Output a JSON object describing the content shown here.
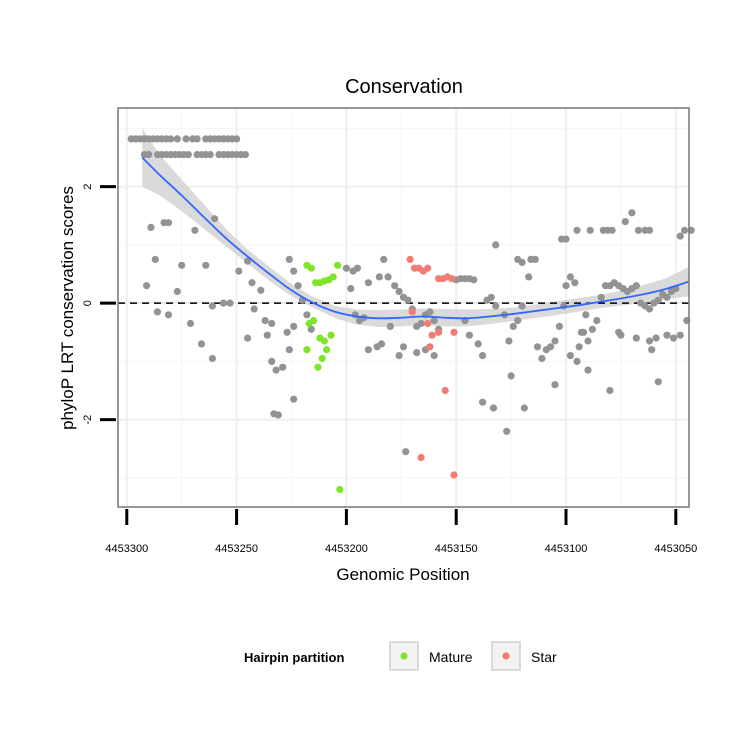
{
  "chart_data": {
    "type": "scatter",
    "title": "Conservation",
    "xlabel": "Genomic Position",
    "ylabel": "phyloP LRT conservation scores",
    "x_reversed": true,
    "xlim": [
      4453044,
      4453304
    ],
    "ylim": [
      -3.5,
      3.35
    ],
    "xticks": [
      4453300,
      4453250,
      4453200,
      4453150,
      4453100,
      4453050
    ],
    "xtick_labels": [
      "4453300",
      "4453250",
      "4453200",
      "4453150",
      "4453100",
      "4453050"
    ],
    "yticks": [
      -2,
      0,
      2
    ],
    "ytick_labels": [
      "-2",
      "0",
      "2"
    ],
    "hline": 0,
    "grid": true,
    "legend": {
      "title": "Hairpin partition",
      "position": "bottom",
      "items": [
        {
          "label": "Mature",
          "color": "#7FE52A"
        },
        {
          "label": "Star",
          "color": "#F07C74"
        }
      ]
    },
    "colors": {
      "other": "#939393",
      "mature": "#7FE52A",
      "star": "#F07C74",
      "smooth": "#3366FF",
      "band": "#D3D3D3"
    },
    "series": [
      {
        "name": "Other",
        "points": [
          [
            4453298,
            2.82
          ],
          [
            4453296,
            2.82
          ],
          [
            4453294,
            2.82
          ],
          [
            4453292,
            2.82
          ],
          [
            4453290,
            2.82
          ],
          [
            4453288,
            2.82
          ],
          [
            4453286,
            2.82
          ],
          [
            4453284,
            2.82
          ],
          [
            4453282,
            2.82
          ],
          [
            4453280,
            2.82
          ],
          [
            4453277,
            2.82
          ],
          [
            4453273,
            2.82
          ],
          [
            4453270,
            2.82
          ],
          [
            4453268,
            2.82
          ],
          [
            4453264,
            2.82
          ],
          [
            4453262,
            2.82
          ],
          [
            4453260,
            2.82
          ],
          [
            4453258,
            2.82
          ],
          [
            4453256,
            2.82
          ],
          [
            4453254,
            2.82
          ],
          [
            4453252,
            2.82
          ],
          [
            4453250,
            2.82
          ],
          [
            4453292,
            2.55
          ],
          [
            4453290,
            2.55
          ],
          [
            4453286,
            2.55
          ],
          [
            4453284,
            2.55
          ],
          [
            4453282,
            2.55
          ],
          [
            4453280,
            2.55
          ],
          [
            4453278,
            2.55
          ],
          [
            4453276,
            2.55
          ],
          [
            4453274,
            2.55
          ],
          [
            4453272,
            2.55
          ],
          [
            4453268,
            2.55
          ],
          [
            4453266,
            2.55
          ],
          [
            4453264,
            2.55
          ],
          [
            4453262,
            2.55
          ],
          [
            4453258,
            2.55
          ],
          [
            4453256,
            2.55
          ],
          [
            4453254,
            2.55
          ],
          [
            4453252,
            2.55
          ],
          [
            4453250,
            2.55
          ],
          [
            4453248,
            2.55
          ],
          [
            4453246,
            2.55
          ],
          [
            4453289,
            1.3
          ],
          [
            4453283,
            1.38
          ],
          [
            4453281,
            1.38
          ],
          [
            4453269,
            1.25
          ],
          [
            4453260,
            1.45
          ],
          [
            4453287,
            0.75
          ],
          [
            4453275,
            0.65
          ],
          [
            4453264,
            0.65
          ],
          [
            4453245,
            0.72
          ],
          [
            4453249,
            0.55
          ],
          [
            4453243,
            0.35
          ],
          [
            4453291,
            0.3
          ],
          [
            4453277,
            0.2
          ],
          [
            4453239,
            0.22
          ],
          [
            4453286,
            -0.15
          ],
          [
            4453281,
            -0.2
          ],
          [
            4453271,
            -0.35
          ],
          [
            4453261,
            -0.05
          ],
          [
            4453256,
            0.0
          ],
          [
            4453253,
            0.0
          ],
          [
            4453242,
            -0.1
          ],
          [
            4453237,
            -0.3
          ],
          [
            4453234,
            -0.35
          ],
          [
            4453227,
            -0.5
          ],
          [
            4453266,
            -0.7
          ],
          [
            4453261,
            -0.95
          ],
          [
            4453245,
            -0.6
          ],
          [
            4453236,
            -0.55
          ],
          [
            4453234,
            -1.0
          ],
          [
            4453232,
            -1.15
          ],
          [
            4453229,
            -1.1
          ],
          [
            4453233,
            -1.9
          ],
          [
            4453231,
            -1.92
          ],
          [
            4453224,
            -1.65
          ],
          [
            4453226,
            -0.8
          ],
          [
            4453224,
            -0.4
          ],
          [
            4453226,
            0.75
          ],
          [
            4453224,
            0.55
          ],
          [
            4453222,
            0.3
          ],
          [
            4453220,
            0.05
          ],
          [
            4453218,
            -0.2
          ],
          [
            4453216,
            -0.45
          ],
          [
            4453200,
            0.6
          ],
          [
            4453197,
            0.55
          ],
          [
            4453195,
            0.6
          ],
          [
            4453198,
            0.25
          ],
          [
            4453196,
            -0.2
          ],
          [
            4453194,
            -0.3
          ],
          [
            4453192,
            -0.25
          ],
          [
            4453190,
            0.35
          ],
          [
            4453185,
            0.45
          ],
          [
            4453183,
            0.75
          ],
          [
            4453181,
            0.45
          ],
          [
            4453178,
            0.3
          ],
          [
            4453176,
            0.2
          ],
          [
            4453174,
            0.1
          ],
          [
            4453172,
            0.05
          ],
          [
            4453170,
            -0.1
          ],
          [
            4453168,
            -0.4
          ],
          [
            4453166,
            -0.35
          ],
          [
            4453164,
            -0.2
          ],
          [
            4453162,
            -0.15
          ],
          [
            4453160,
            -0.3
          ],
          [
            4453158,
            -0.45
          ],
          [
            4453190,
            -0.8
          ],
          [
            4453186,
            -0.75
          ],
          [
            4453184,
            -0.7
          ],
          [
            4453180,
            -0.4
          ],
          [
            4453176,
            -0.9
          ],
          [
            4453174,
            -0.75
          ],
          [
            4453168,
            -0.85
          ],
          [
            4453164,
            -0.8
          ],
          [
            4453160,
            -0.9
          ],
          [
            4453173,
            -2.55
          ],
          [
            4453150,
            0.4
          ],
          [
            4453148,
            0.42
          ],
          [
            4453146,
            0.42
          ],
          [
            4453144,
            0.42
          ],
          [
            4453142,
            0.4
          ],
          [
            4453146,
            -0.3
          ],
          [
            4453144,
            -0.55
          ],
          [
            4453140,
            -0.7
          ],
          [
            4453138,
            -0.9
          ],
          [
            4453136,
            0.05
          ],
          [
            4453134,
            0.1
          ],
          [
            4453132,
            -0.05
          ],
          [
            4453138,
            -1.7
          ],
          [
            4453133,
            -1.8
          ],
          [
            4453128,
            -0.2
          ],
          [
            4453126,
            -0.65
          ],
          [
            4453124,
            -0.4
          ],
          [
            4453122,
            -0.3
          ],
          [
            4453120,
            -0.05
          ],
          [
            4453122,
            0.75
          ],
          [
            4453120,
            0.7
          ],
          [
            4453117,
            0.45
          ],
          [
            4453116,
            0.75
          ],
          [
            4453114,
            0.75
          ],
          [
            4453113,
            -0.75
          ],
          [
            4453111,
            -0.95
          ],
          [
            4453109,
            -0.8
          ],
          [
            4453107,
            -0.75
          ],
          [
            4453105,
            -0.65
          ],
          [
            4453103,
            -0.4
          ],
          [
            4453101,
            -0.05
          ],
          [
            4453100,
            0.3
          ],
          [
            4453098,
            0.45
          ],
          [
            4453096,
            0.35
          ],
          [
            4453094,
            -0.75
          ],
          [
            4453092,
            -0.5
          ],
          [
            4453090,
            -0.65
          ],
          [
            4453088,
            -0.45
          ],
          [
            4453086,
            -0.3
          ],
          [
            4453084,
            0.1
          ],
          [
            4453082,
            0.3
          ],
          [
            4453080,
            0.3
          ],
          [
            4453078,
            0.35
          ],
          [
            4453076,
            0.3
          ],
          [
            4453074,
            0.25
          ],
          [
            4453072,
            0.2
          ],
          [
            4453070,
            0.25
          ],
          [
            4453068,
            0.3
          ],
          [
            4453066,
            0.0
          ],
          [
            4453064,
            -0.05
          ],
          [
            4453062,
            -0.1
          ],
          [
            4453060,
            0.0
          ],
          [
            4453058,
            0.05
          ],
          [
            4453056,
            0.15
          ],
          [
            4453054,
            0.1
          ],
          [
            4453052,
            0.2
          ],
          [
            4453050,
            0.25
          ],
          [
            4453102,
            1.1
          ],
          [
            4453100,
            1.1
          ],
          [
            4453095,
            1.25
          ],
          [
            4453089,
            1.25
          ],
          [
            4453081,
            1.25
          ],
          [
            4453079,
            1.25
          ],
          [
            4453073,
            1.4
          ],
          [
            4453070,
            1.55
          ],
          [
            4453067,
            1.25
          ],
          [
            4453064,
            1.25
          ],
          [
            4453062,
            1.25
          ],
          [
            4453048,
            1.15
          ],
          [
            4453046,
            1.25
          ],
          [
            4453043,
            1.25
          ],
          [
            4453132,
            1.0
          ],
          [
            4453098,
            -0.9
          ],
          [
            4453095,
            -1.0
          ],
          [
            4453090,
            -1.15
          ],
          [
            4453125,
            -1.25
          ],
          [
            4453105,
            -1.4
          ],
          [
            4453080,
            -1.5
          ],
          [
            4453058,
            -1.35
          ],
          [
            4453068,
            -0.6
          ],
          [
            4453062,
            -0.65
          ],
          [
            4453054,
            -0.55
          ],
          [
            4453051,
            -0.6
          ],
          [
            4453048,
            -0.55
          ],
          [
            4453127,
            -2.2
          ],
          [
            4453119,
            -1.8
          ],
          [
            4453045,
            -0.3
          ],
          [
            4453061,
            -0.8
          ],
          [
            4453059,
            -0.6
          ],
          [
            4453075,
            -0.55
          ],
          [
            4453076,
            -0.5
          ],
          [
            4453091,
            -0.2
          ],
          [
            4453093,
            -0.5
          ],
          [
            4453083,
            1.25
          ]
        ]
      },
      {
        "name": "Mature",
        "points": [
          [
            4453218,
            0.65
          ],
          [
            4453216,
            0.6
          ],
          [
            4453214,
            0.35
          ],
          [
            4453212,
            0.35
          ],
          [
            4453210,
            0.38
          ],
          [
            4453208,
            0.4
          ],
          [
            4453206,
            0.45
          ],
          [
            4453204,
            0.65
          ],
          [
            4453217,
            -0.35
          ],
          [
            4453215,
            -0.3
          ],
          [
            4453212,
            -0.6
          ],
          [
            4453210,
            -0.65
          ],
          [
            4453207,
            -0.55
          ],
          [
            4453213,
            -1.1
          ],
          [
            4453211,
            -0.95
          ],
          [
            4453209,
            -0.8
          ],
          [
            4453218,
            -0.8
          ],
          [
            4453203,
            -3.2
          ]
        ]
      },
      {
        "name": "Star",
        "points": [
          [
            4453171,
            0.75
          ],
          [
            4453169,
            0.6
          ],
          [
            4453167,
            0.6
          ],
          [
            4453165,
            0.55
          ],
          [
            4453163,
            0.6
          ],
          [
            4453158,
            0.42
          ],
          [
            4453156,
            0.42
          ],
          [
            4453154,
            0.45
          ],
          [
            4453152,
            0.42
          ],
          [
            4453170,
            -0.15
          ],
          [
            4453163,
            -0.35
          ],
          [
            4453161,
            -0.55
          ],
          [
            4453151,
            -0.5
          ],
          [
            4453162,
            -0.75
          ],
          [
            4453158,
            -0.5
          ],
          [
            4453155,
            -1.5
          ],
          [
            4453166,
            -2.65
          ],
          [
            4453151,
            -2.95
          ]
        ]
      }
    ],
    "smooth": {
      "x": [
        4453293,
        4453285,
        4453275,
        4453265,
        4453255,
        4453245,
        4453235,
        4453225,
        4453215,
        4453205,
        4453195,
        4453185,
        4453175,
        4453165,
        4453155,
        4453145,
        4453135,
        4453125,
        4453115,
        4453105,
        4453095,
        4453085,
        4453075,
        4453065,
        4453055,
        4453044
      ],
      "y": [
        2.5,
        2.2,
        1.85,
        1.48,
        1.12,
        0.8,
        0.5,
        0.22,
        0.0,
        -0.15,
        -0.23,
        -0.26,
        -0.25,
        -0.23,
        -0.25,
        -0.26,
        -0.23,
        -0.19,
        -0.14,
        -0.09,
        -0.04,
        0.02,
        0.08,
        0.15,
        0.24,
        0.37
      ],
      "lower": [
        2.0,
        1.85,
        1.58,
        1.28,
        0.98,
        0.68,
        0.38,
        0.12,
        -0.08,
        -0.26,
        -0.37,
        -0.41,
        -0.4,
        -0.38,
        -0.4,
        -0.4,
        -0.36,
        -0.31,
        -0.26,
        -0.21,
        -0.15,
        -0.09,
        -0.04,
        0.0,
        0.06,
        0.12
      ],
      "upper": [
        3.0,
        2.55,
        2.12,
        1.7,
        1.28,
        0.92,
        0.62,
        0.33,
        0.1,
        -0.05,
        -0.11,
        -0.12,
        -0.11,
        -0.09,
        -0.1,
        -0.11,
        -0.1,
        -0.08,
        -0.03,
        0.03,
        0.08,
        0.14,
        0.21,
        0.31,
        0.42,
        0.62
      ]
    }
  }
}
